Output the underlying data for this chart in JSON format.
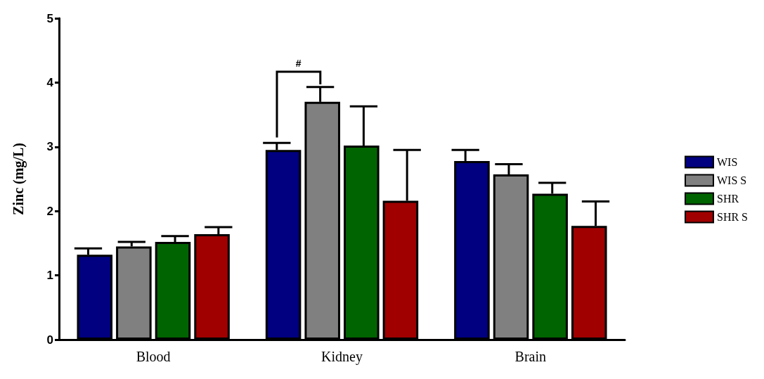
{
  "chart_data": {
    "type": "bar",
    "ylabel": "Zinc (mg/L)",
    "categories": [
      "Blood",
      "Kidney",
      "Brain"
    ],
    "series": [
      {
        "name": "WIS",
        "color": "#000080",
        "values": [
          1.32,
          2.95,
          2.78
        ],
        "errors": [
          [
            1.32,
            1.42
          ],
          [
            2.95,
            3.06
          ],
          [
            2.78,
            2.95
          ]
        ]
      },
      {
        "name": "WIS S",
        "color": "#808080",
        "values": [
          1.45,
          3.7,
          2.57
        ],
        "errors": [
          [
            1.45,
            1.52
          ],
          [
            3.7,
            3.93
          ],
          [
            2.57,
            2.73
          ]
        ]
      },
      {
        "name": "SHR",
        "color": "#006400",
        "values": [
          1.52,
          3.02,
          2.27
        ],
        "errors": [
          [
            1.52,
            1.61
          ],
          [
            3.02,
            3.63
          ],
          [
            2.27,
            2.44
          ]
        ]
      },
      {
        "name": "SHR S",
        "color": "#a00000",
        "values": [
          1.64,
          2.16,
          1.77
        ],
        "errors": [
          [
            1.64,
            1.75
          ],
          [
            2.16,
            2.95
          ],
          [
            1.77,
            2.15
          ]
        ]
      }
    ],
    "ylim": [
      0,
      5
    ],
    "yticks": [
      0,
      1,
      2,
      3,
      4,
      5
    ],
    "grid": false,
    "legend": "right",
    "annotations": [
      "#"
    ]
  }
}
